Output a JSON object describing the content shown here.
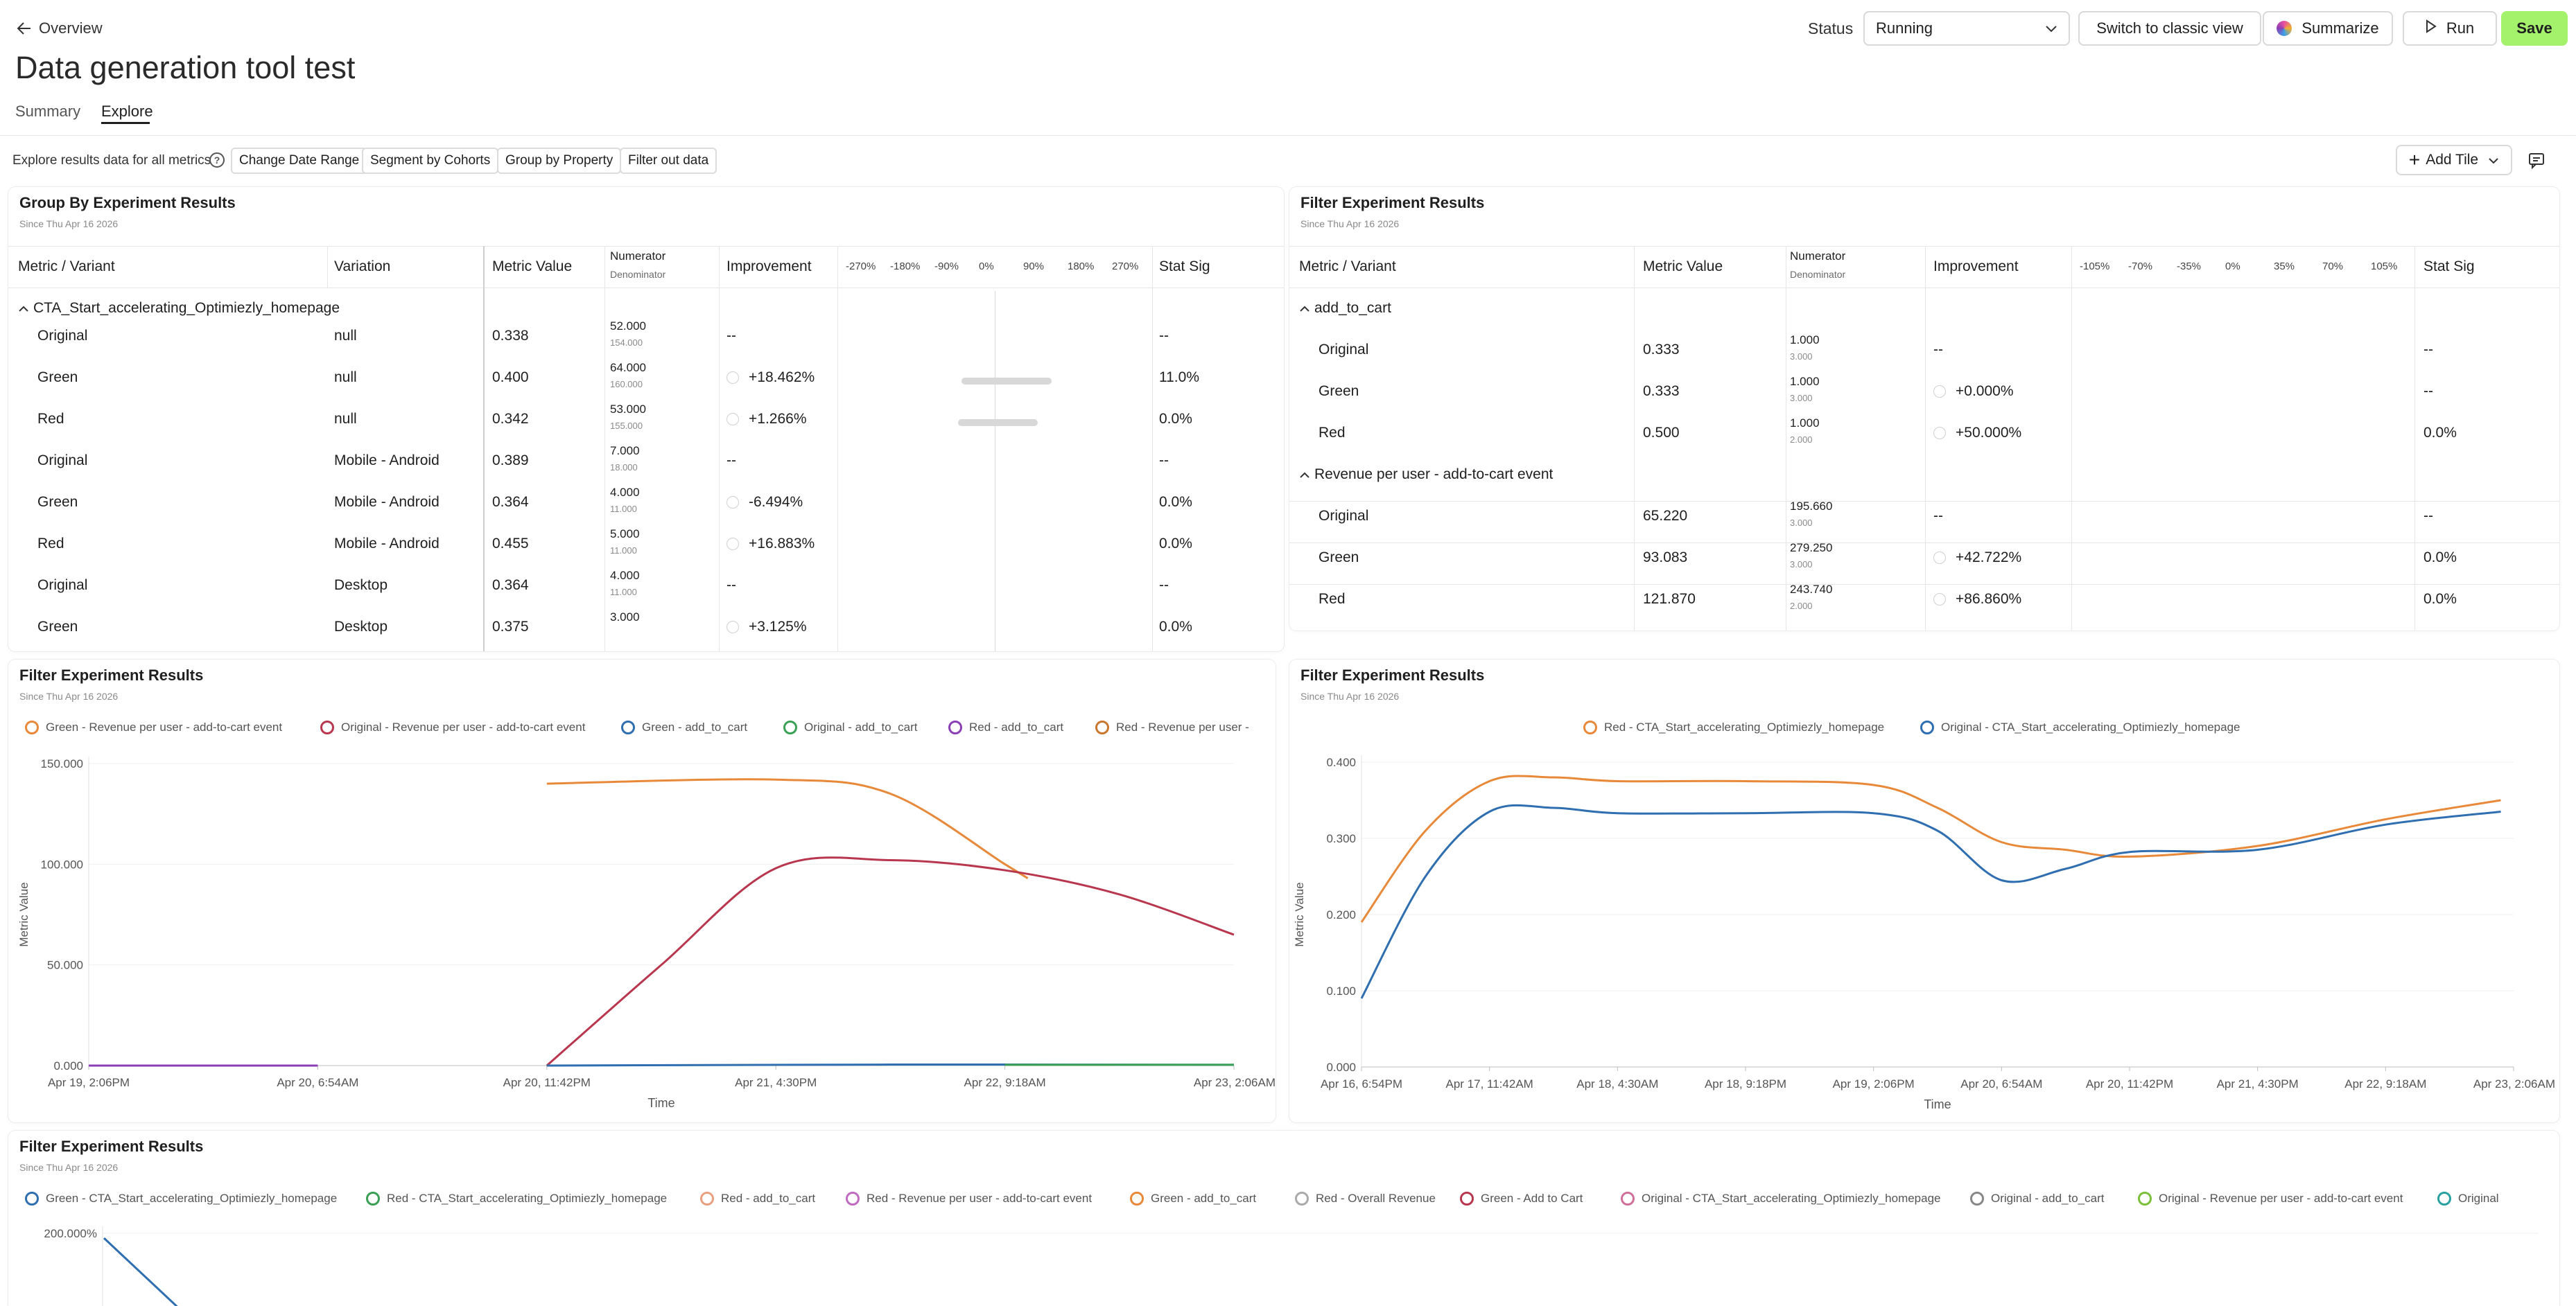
{
  "header": {
    "back_label": "Overview",
    "title": "Data generation tool test",
    "status_label": "Status",
    "status_value": "Running",
    "classic_view": "Switch to classic view",
    "summarize": "Summarize",
    "run": "Run",
    "save": "Save",
    "tabs": [
      "Summary",
      "Explore"
    ]
  },
  "toolbar": {
    "explore_text": "Explore results data for all metrics",
    "chips": [
      "Change Date Range",
      "Segment by Cohorts",
      "Group by Property",
      "Filter out data"
    ],
    "add_tile": "Add Tile"
  },
  "colors": {
    "accent": "#a4f26c",
    "orange": "#e8893a",
    "crimson": "#b8374e",
    "blue": "#2f6fb0",
    "green": "#3aa055",
    "purple": "#8b3fb5"
  },
  "groupby": {
    "title": "Group By Experiment Results",
    "subtitle": "Since Thu Apr 16 2026",
    "headers": {
      "metric": "Metric / Variant",
      "variation": "Variation",
      "value": "Metric Value",
      "num": "Numerator",
      "den": "Denominator",
      "imp": "Improvement",
      "sig": "Stat Sig"
    },
    "scale": [
      "-270%",
      "-180%",
      "-90%",
      "0%",
      "90%",
      "180%",
      "270%"
    ],
    "group": "CTA_Start_accelerating_Optimiezly_homepage",
    "rows": [
      {
        "variant": "Original",
        "variation": "null",
        "value": "0.338",
        "num": "52.000",
        "den": "154.000",
        "imp": "--",
        "sig": "--"
      },
      {
        "variant": "Green",
        "variation": "null",
        "value": "0.400",
        "num": "64.000",
        "den": "160.000",
        "imp": "+18.462%",
        "sig": "11.0%"
      },
      {
        "variant": "Red",
        "variation": "null",
        "value": "0.342",
        "num": "53.000",
        "den": "155.000",
        "imp": "+1.266%",
        "sig": "0.0%"
      },
      {
        "variant": "Original",
        "variation": "Mobile - Android",
        "value": "0.389",
        "num": "7.000",
        "den": "18.000",
        "imp": "--",
        "sig": "--"
      },
      {
        "variant": "Green",
        "variation": "Mobile - Android",
        "value": "0.364",
        "num": "4.000",
        "den": "11.000",
        "imp": "-6.494%",
        "sig": "0.0%"
      },
      {
        "variant": "Red",
        "variation": "Mobile - Android",
        "value": "0.455",
        "num": "5.000",
        "den": "11.000",
        "imp": "+16.883%",
        "sig": "0.0%"
      },
      {
        "variant": "Original",
        "variation": "Desktop",
        "value": "0.364",
        "num": "4.000",
        "den": "11.000",
        "imp": "--",
        "sig": "--"
      },
      {
        "variant": "Green",
        "variation": "Desktop",
        "value": "0.375",
        "num": "3.000",
        "den": "",
        "imp": "+3.125%",
        "sig": "0.0%"
      }
    ]
  },
  "filter": {
    "title": "Filter Experiment Results",
    "subtitle": "Since Thu Apr 16 2026",
    "headers": {
      "metric": "Metric / Variant",
      "value": "Metric Value",
      "num": "Numerator",
      "den": "Denominator",
      "imp": "Improvement",
      "sig": "Stat Sig"
    },
    "scale": [
      "-105%",
      "-70%",
      "-35%",
      "0%",
      "35%",
      "70%",
      "105%"
    ],
    "groups": [
      {
        "name": "add_to_cart",
        "rows": [
          {
            "variant": "Original",
            "value": "0.333",
            "num": "1.000",
            "den": "3.000",
            "imp": "--",
            "sig": "--"
          },
          {
            "variant": "Green",
            "value": "0.333",
            "num": "1.000",
            "den": "3.000",
            "imp": "+0.000%",
            "sig": "--"
          },
          {
            "variant": "Red",
            "value": "0.500",
            "num": "1.000",
            "den": "2.000",
            "imp": "+50.000%",
            "sig": "0.0%"
          }
        ]
      },
      {
        "name": "Revenue per user - add-to-cart event",
        "rows": [
          {
            "variant": "Original",
            "value": "65.220",
            "num": "195.660",
            "den": "3.000",
            "imp": "--",
            "sig": "--"
          },
          {
            "variant": "Green",
            "value": "93.083",
            "num": "279.250",
            "den": "3.000",
            "imp": "+42.722%",
            "sig": "0.0%"
          },
          {
            "variant": "Red",
            "value": "121.870",
            "num": "243.740",
            "den": "2.000",
            "imp": "+86.860%",
            "sig": "0.0%"
          }
        ]
      }
    ]
  },
  "chart_data": [
    {
      "type": "line",
      "title": "Filter Experiment Results",
      "subtitle": "Since Thu Apr 16 2026",
      "xlabel": "Time",
      "ylabel": "Metric Value",
      "x_ticks": [
        "Apr 19, 2:06PM",
        "Apr 20, 6:54AM",
        "Apr 20, 11:42PM",
        "Apr 21, 4:30PM",
        "Apr 22, 9:18AM",
        "Apr 23, 2:06AM"
      ],
      "y_ticks": [
        "0.000",
        "50.000",
        "100.000",
        "150.000"
      ],
      "ylim": [
        0,
        150
      ],
      "legend": [
        {
          "name": "Green - Revenue per user - add-to-cart event",
          "color": "#e8893a"
        },
        {
          "name": "Original - Revenue per user - add-to-cart event",
          "color": "#b8374e"
        },
        {
          "name": "Green - add_to_cart",
          "color": "#2f6fb0"
        },
        {
          "name": "Original - add_to_cart",
          "color": "#3aa055"
        },
        {
          "name": "Red - add_to_cart",
          "color": "#8b3fb5"
        },
        {
          "name": "Red - Revenue per user -",
          "color": "#c9772f"
        }
      ],
      "series": [
        {
          "color": "#e8893a",
          "points": [
            [
              2,
              140
            ],
            [
              3,
              142
            ],
            [
              3.5,
              135
            ],
            [
              4,
              100
            ],
            [
              4.1,
              93
            ]
          ]
        },
        {
          "color": "#b8374e",
          "points": [
            [
              2,
              0
            ],
            [
              2.5,
              50
            ],
            [
              3,
              98
            ],
            [
              3.5,
              102
            ],
            [
              4,
              97
            ],
            [
              4.5,
              85
            ],
            [
              5,
              65
            ]
          ]
        },
        {
          "color": "#2f6fb0",
          "points": [
            [
              2,
              0
            ],
            [
              3.5,
              0.5
            ],
            [
              5,
              0.4
            ]
          ]
        },
        {
          "color": "#3aa055",
          "points": [
            [
              4,
              0.4
            ],
            [
              5,
              0.4
            ]
          ]
        },
        {
          "color": "#8b3fb5",
          "points": [
            [
              0,
              0
            ],
            [
              1,
              0
            ]
          ]
        }
      ]
    },
    {
      "type": "line",
      "title": "Filter Experiment Results",
      "subtitle": "Since Thu Apr 16 2026",
      "xlabel": "Time",
      "ylabel": "Metric Value",
      "x_ticks": [
        "Apr 16, 6:54PM",
        "Apr 17, 11:42AM",
        "Apr 18, 4:30AM",
        "Apr 18, 9:18PM",
        "Apr 19, 2:06PM",
        "Apr 20, 6:54AM",
        "Apr 20, 11:42PM",
        "Apr 21, 4:30PM",
        "Apr 22, 9:18AM",
        "Apr 23, 2:06AM"
      ],
      "y_ticks": [
        "0.000",
        "0.100",
        "0.200",
        "0.300",
        "0.400"
      ],
      "ylim": [
        0,
        0.4
      ],
      "legend": [
        {
          "name": "Red - CTA_Start_accelerating_Optimiezly_homepage",
          "color": "#e8893a"
        },
        {
          "name": "Original - CTA_Start_accelerating_Optimiezly_homepage",
          "color": "#2f6fb0"
        }
      ],
      "series": [
        {
          "color": "#e8893a",
          "points": [
            [
              0,
              0.19
            ],
            [
              0.5,
              0.31
            ],
            [
              1,
              0.375
            ],
            [
              1.5,
              0.38
            ],
            [
              2,
              0.375
            ],
            [
              3,
              0.375
            ],
            [
              4,
              0.37
            ],
            [
              4.5,
              0.34
            ],
            [
              5,
              0.295
            ],
            [
              5.5,
              0.285
            ],
            [
              6,
              0.276
            ],
            [
              7,
              0.29
            ],
            [
              8,
              0.325
            ],
            [
              8.9,
              0.35
            ]
          ]
        },
        {
          "color": "#2f6fb0",
          "points": [
            [
              0,
              0.09
            ],
            [
              0.5,
              0.25
            ],
            [
              1,
              0.335
            ],
            [
              1.5,
              0.34
            ],
            [
              2,
              0.333
            ],
            [
              3,
              0.333
            ],
            [
              4,
              0.333
            ],
            [
              4.5,
              0.31
            ],
            [
              5,
              0.245
            ],
            [
              5.5,
              0.26
            ],
            [
              6,
              0.282
            ],
            [
              7,
              0.285
            ],
            [
              8,
              0.318
            ],
            [
              8.9,
              0.335
            ]
          ]
        }
      ]
    },
    {
      "type": "line",
      "title": "Filter Experiment Results",
      "subtitle": "Since Thu Apr 16 2026",
      "y_ticks": [
        "200.000%"
      ],
      "legend": [
        {
          "name": "Green - CTA_Start_accelerating_Optimiezly_homepage",
          "color": "#2f6fb0"
        },
        {
          "name": "Red - CTA_Start_accelerating_Optimiezly_homepage",
          "color": "#3aa055"
        },
        {
          "name": "Red - add_to_cart",
          "color": "#e8a080"
        },
        {
          "name": "Red - Revenue per user - add-to-cart event",
          "color": "#c06ac0"
        },
        {
          "name": "Green - add_to_cart",
          "color": "#e8893a"
        },
        {
          "name": "Red - Overall Revenue",
          "color": "#aaaaaa"
        },
        {
          "name": "Green - Add to Cart",
          "color": "#b8374e"
        },
        {
          "name": "Original - CTA_Start_accelerating_Optimiezly_homepage",
          "color": "#d0709a"
        },
        {
          "name": "Original - add_to_cart",
          "color": "#888888"
        },
        {
          "name": "Original - Revenue per user - add-to-cart event",
          "color": "#7bbf3a"
        },
        {
          "name": "Original",
          "color": "#2aa0a0"
        }
      ],
      "series": [
        {
          "color": "#2f6fb0",
          "points": [
            [
              0,
              200
            ],
            [
              1,
              130
            ]
          ]
        }
      ]
    }
  ]
}
